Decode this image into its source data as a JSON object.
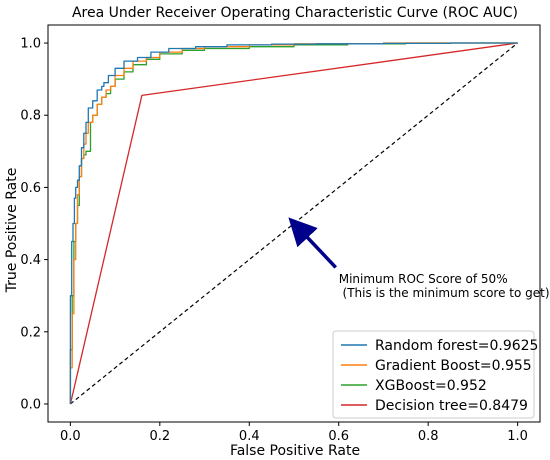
{
  "chart_data": {
    "type": "line",
    "title": "Area Under Receiver Operating Characteristic Curve (ROC AUC)",
    "xlabel": "False Positive Rate",
    "ylabel": "True Positive Rate",
    "xlim": [
      -0.05,
      1.05
    ],
    "ylim": [
      -0.05,
      1.05
    ],
    "xticks": [
      "0.0",
      "0.2",
      "0.4",
      "0.6",
      "0.8",
      "1.0"
    ],
    "yticks": [
      "0.0",
      "0.2",
      "0.4",
      "0.6",
      "0.8",
      "1.0"
    ],
    "grid": false,
    "legend_position": "lower-right",
    "baseline": {
      "x": [
        0,
        1
      ],
      "y": [
        0,
        1
      ],
      "color": "#000000",
      "style": "dashed"
    },
    "series": [
      {
        "name": "Random forest=0.9625",
        "color": "#1f77b4",
        "x": [
          0,
          0.003,
          0.006,
          0.009,
          0.012,
          0.016,
          0.02,
          0.025,
          0.03,
          0.035,
          0.04,
          0.05,
          0.06,
          0.07,
          0.075,
          0.085,
          0.1,
          0.12,
          0.15,
          0.18,
          0.22,
          0.28,
          0.35,
          0.45,
          0.55,
          0.7,
          0.85,
          1.0
        ],
        "y": [
          0,
          0.3,
          0.45,
          0.5,
          0.57,
          0.6,
          0.62,
          0.66,
          0.71,
          0.75,
          0.78,
          0.82,
          0.84,
          0.87,
          0.88,
          0.89,
          0.91,
          0.93,
          0.95,
          0.96,
          0.975,
          0.985,
          0.99,
          0.995,
          0.997,
          0.998,
          0.999,
          1.0
        ]
      },
      {
        "name": "Gradient Boost=0.955",
        "color": "#ff7f0e",
        "x": [
          0,
          0.004,
          0.008,
          0.012,
          0.016,
          0.02,
          0.025,
          0.03,
          0.035,
          0.04,
          0.05,
          0.06,
          0.07,
          0.08,
          0.09,
          0.1,
          0.12,
          0.14,
          0.17,
          0.2,
          0.25,
          0.3,
          0.4,
          0.5,
          0.7,
          1.0
        ],
        "y": [
          0,
          0.1,
          0.25,
          0.4,
          0.5,
          0.58,
          0.63,
          0.68,
          0.72,
          0.75,
          0.78,
          0.8,
          0.83,
          0.85,
          0.87,
          0.88,
          0.91,
          0.93,
          0.95,
          0.96,
          0.975,
          0.985,
          0.99,
          0.995,
          0.998,
          1.0
        ]
      },
      {
        "name": "XGBoost=0.952",
        "color": "#2ca02c",
        "x": [
          0,
          0.004,
          0.008,
          0.012,
          0.016,
          0.02,
          0.025,
          0.03,
          0.035,
          0.045,
          0.05,
          0.06,
          0.07,
          0.08,
          0.09,
          0.1,
          0.12,
          0.14,
          0.17,
          0.2,
          0.25,
          0.3,
          0.4,
          0.5,
          0.62,
          0.75,
          1.0
        ],
        "y": [
          0,
          0.15,
          0.3,
          0.45,
          0.5,
          0.55,
          0.63,
          0.68,
          0.69,
          0.7,
          0.78,
          0.8,
          0.83,
          0.85,
          0.86,
          0.88,
          0.9,
          0.92,
          0.94,
          0.955,
          0.97,
          0.98,
          0.985,
          0.99,
          0.995,
          0.998,
          1.0
        ]
      },
      {
        "name": "Decision tree=0.8479",
        "color": "#d62728",
        "x": [
          0,
          0.16,
          1.0
        ],
        "y": [
          0,
          0.855,
          1.0
        ]
      }
    ],
    "annotation": {
      "lines": [
        "Minimum ROC Score of 50%",
        " (This is the minimum score to get)"
      ],
      "text_at": [
        0.6,
        0.335
      ],
      "arrow_from": [
        0.6,
        0.37
      ],
      "arrow_to": [
        0.5,
        0.5
      ],
      "arrow_color": "#00008b"
    }
  }
}
